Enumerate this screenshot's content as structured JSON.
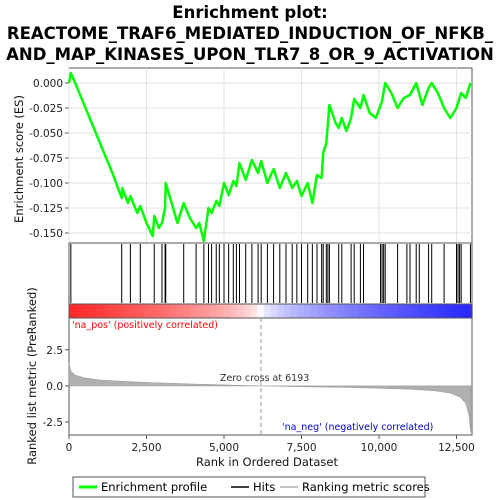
{
  "chart_data": {
    "type": "line",
    "title_lines": [
      "Enrichment plot:",
      "REACTOME_TRAF6_MEDIATED_INDUCTION_OF_NFKB_",
      "AND_MAP_KINASES_UPON_TLR7_8_OR_9_ACTIVATION"
    ],
    "es_panel": {
      "ylabel": "Enrichment score (ES)",
      "ylim": [
        -0.16,
        0.015
      ],
      "yticks": [
        0.0,
        -0.025,
        -0.05,
        -0.075,
        -0.1,
        -0.125,
        -0.15
      ],
      "ytick_labels": [
        "0.000",
        "-0.025",
        "-0.050",
        "-0.075",
        "-0.100",
        "-0.125",
        "-0.150"
      ],
      "line_color": "#00ff00",
      "profile": [
        [
          0,
          0.0
        ],
        [
          60,
          0.01
        ],
        [
          200,
          0.0
        ],
        [
          600,
          -0.03
        ],
        [
          1000,
          -0.06
        ],
        [
          1400,
          -0.09
        ],
        [
          1700,
          -0.115
        ],
        [
          1720,
          -0.105
        ],
        [
          1900,
          -0.12
        ],
        [
          1980,
          -0.113
        ],
        [
          2200,
          -0.13
        ],
        [
          2300,
          -0.123
        ],
        [
          2500,
          -0.14
        ],
        [
          2700,
          -0.153
        ],
        [
          2750,
          -0.133
        ],
        [
          2900,
          -0.145
        ],
        [
          3000,
          -0.14
        ],
        [
          3100,
          -0.125
        ],
        [
          3120,
          -0.1
        ],
        [
          3500,
          -0.14
        ],
        [
          3700,
          -0.12
        ],
        [
          3900,
          -0.135
        ],
        [
          4100,
          -0.145
        ],
        [
          4200,
          -0.14
        ],
        [
          4350,
          -0.158
        ],
        [
          4500,
          -0.125
        ],
        [
          4600,
          -0.13
        ],
        [
          4750,
          -0.118
        ],
        [
          4850,
          -0.123
        ],
        [
          5000,
          -0.1
        ],
        [
          5150,
          -0.112
        ],
        [
          5300,
          -0.098
        ],
        [
          5400,
          -0.103
        ],
        [
          5500,
          -0.08
        ],
        [
          5700,
          -0.097
        ],
        [
          5900,
          -0.077
        ],
        [
          6100,
          -0.09
        ],
        [
          6200,
          -0.078
        ],
        [
          6400,
          -0.1
        ],
        [
          6600,
          -0.086
        ],
        [
          6800,
          -0.105
        ],
        [
          7000,
          -0.09
        ],
        [
          7200,
          -0.105
        ],
        [
          7350,
          -0.098
        ],
        [
          7500,
          -0.113
        ],
        [
          7700,
          -0.1
        ],
        [
          7850,
          -0.12
        ],
        [
          8000,
          -0.092
        ],
        [
          8150,
          -0.095
        ],
        [
          8200,
          -0.07
        ],
        [
          8300,
          -0.06
        ],
        [
          8400,
          -0.022
        ],
        [
          8600,
          -0.04
        ],
        [
          8700,
          -0.045
        ],
        [
          8800,
          -0.035
        ],
        [
          8950,
          -0.048
        ],
        [
          9100,
          -0.035
        ],
        [
          9200,
          -0.016
        ],
        [
          9400,
          -0.025
        ],
        [
          9500,
          -0.012
        ],
        [
          9700,
          -0.03
        ],
        [
          9900,
          -0.035
        ],
        [
          10100,
          -0.018
        ],
        [
          10200,
          0.0
        ],
        [
          10400,
          -0.01
        ],
        [
          10600,
          -0.025
        ],
        [
          10800,
          -0.015
        ],
        [
          11000,
          -0.012
        ],
        [
          11200,
          0.0
        ],
        [
          11400,
          -0.022
        ],
        [
          11600,
          -0.005
        ],
        [
          11700,
          0.0
        ],
        [
          11900,
          -0.01
        ],
        [
          12100,
          -0.025
        ],
        [
          12300,
          -0.035
        ],
        [
          12500,
          -0.025
        ],
        [
          12650,
          -0.01
        ],
        [
          12800,
          -0.015
        ],
        [
          12950,
          0.0
        ]
      ]
    },
    "hits": [
      60,
      1700,
      1980,
      2300,
      2750,
      3000,
      3100,
      3120,
      3700,
      4100,
      4350,
      4500,
      4600,
      4750,
      4850,
      5000,
      5150,
      5300,
      5400,
      5500,
      5700,
      5900,
      6100,
      6200,
      6400,
      6600,
      6800,
      7000,
      7200,
      7350,
      7500,
      7700,
      7850,
      8000,
      8150,
      8200,
      8300,
      8350,
      8400,
      8700,
      8800,
      9100,
      9200,
      9400,
      9500,
      10050,
      10100,
      10150,
      10200,
      10600,
      10900,
      11000,
      11200,
      11300,
      11600,
      11700,
      12100,
      12500,
      12550,
      12600,
      12650,
      12950
    ],
    "rank_panel": {
      "ylabel": "Ranked list metric (PreRanked)",
      "ylim": [
        -3.4,
        4.7
      ],
      "yticks": [
        2.5,
        0.0,
        -2.5
      ],
      "ytick_labels": [
        "2.5",
        "0.0",
        "-2.5"
      ],
      "metric_profile": [
        [
          0,
          1.6
        ],
        [
          60,
          1.0
        ],
        [
          200,
          0.75
        ],
        [
          500,
          0.55
        ],
        [
          1000,
          0.4
        ],
        [
          2000,
          0.28
        ],
        [
          3000,
          0.2
        ],
        [
          4000,
          0.13
        ],
        [
          5000,
          0.07
        ],
        [
          6193,
          0.0
        ],
        [
          7000,
          -0.03
        ],
        [
          8000,
          -0.07
        ],
        [
          9000,
          -0.11
        ],
        [
          10000,
          -0.16
        ],
        [
          11000,
          -0.23
        ],
        [
          11800,
          -0.33
        ],
        [
          12300,
          -0.5
        ],
        [
          12600,
          -0.75
        ],
        [
          12800,
          -1.2
        ],
        [
          12900,
          -2.0
        ],
        [
          12960,
          -3.2
        ]
      ],
      "zero_cross_label": "Zero cross at 6193",
      "zero_cross_x": 6193,
      "pos_label": "'na_pos' (positively correlated)",
      "neg_label": "'na_neg' (negatively correlated)"
    },
    "xlabel": "Rank in Ordered Dataset",
    "xlim": [
      0,
      13000
    ],
    "xticks": [
      0,
      2500,
      5000,
      7500,
      10000,
      12500
    ],
    "xtick_labels": [
      "0",
      "2,500",
      "5,000",
      "7,500",
      "10,000",
      "12,500"
    ],
    "legend": {
      "placement": "bottom",
      "items": [
        {
          "label": "Enrichment profile",
          "color": "#00ff00"
        },
        {
          "label": "Hits",
          "color": "#000000"
        },
        {
          "label": "Ranking metric scores",
          "color": "#b0b0b0"
        }
      ]
    },
    "colors": {
      "pos": "#ff0000",
      "neg": "#0000ff",
      "pos_text": "#ff0000",
      "neg_text": "#0000cc",
      "metric_fill": "#b0b0b0"
    }
  }
}
